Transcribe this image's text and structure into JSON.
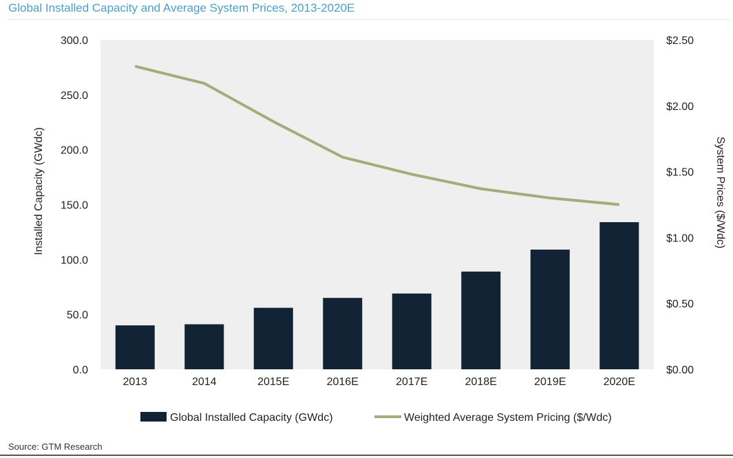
{
  "title": "Global Installed Capacity and Average System Prices, 2013-2020E",
  "source": "Source: GTM Research",
  "colors": {
    "bar": "#132336",
    "line": "#9fae7a",
    "plot_bg": "#efefef",
    "title": "#4a9fc8"
  },
  "chart_data": {
    "type": "bar",
    "categories": [
      "2013",
      "2014",
      "2015E",
      "2016E",
      "2017E",
      "2018E",
      "2019E",
      "2020E"
    ],
    "series": [
      {
        "name": "Global Installed Capacity (GWdc)",
        "type": "bar",
        "axis": "left",
        "values": [
          40,
          41,
          56,
          65,
          69,
          89,
          109,
          134
        ]
      },
      {
        "name": "Weighted Average System Pricing ($/Wdc)",
        "type": "line",
        "axis": "right",
        "values": [
          2.3,
          2.17,
          1.88,
          1.61,
          1.48,
          1.37,
          1.3,
          1.25
        ]
      }
    ],
    "ylabel": "Installed Capacity (GWdc)",
    "ylim": [
      0,
      300
    ],
    "yticks": [
      "0.0",
      "50.0",
      "100.0",
      "150.0",
      "200.0",
      "250.0",
      "300.0"
    ],
    "y2label": "System Prices  ($/Wdc)",
    "y2lim": [
      0,
      2.5
    ],
    "y2ticks": [
      "$0.00",
      "$0.50",
      "$1.00",
      "$1.50",
      "$2.00",
      "$2.50"
    ],
    "legend": "bottom",
    "grid": false
  }
}
